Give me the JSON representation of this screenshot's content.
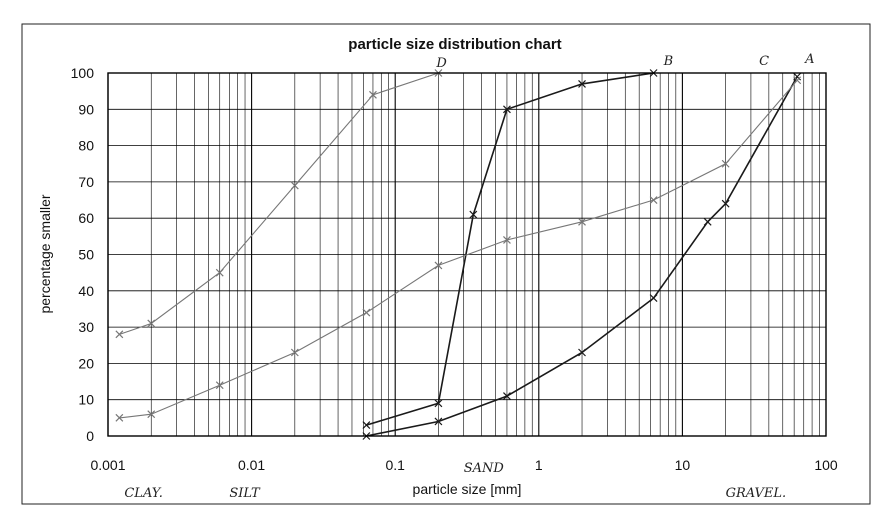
{
  "chart_data": {
    "type": "line",
    "title": "particle size distribution chart",
    "xlabel": "particle size [mm]",
    "ylabel": "percentage smaller",
    "xscale": "log",
    "xlim": [
      0.001,
      100
    ],
    "ylim": [
      0,
      100
    ],
    "xticks": [
      0.001,
      0.01,
      0.1,
      1,
      10,
      100
    ],
    "xtick_labels": [
      "0.001",
      "0.01",
      "0.1",
      "1",
      "10",
      "100"
    ],
    "yticks": [
      0,
      10,
      20,
      30,
      40,
      50,
      60,
      70,
      80,
      90,
      100
    ],
    "ytick_labels": [
      "0",
      "10",
      "20",
      "30",
      "40",
      "50",
      "60",
      "70",
      "80",
      "90",
      "100"
    ],
    "grid": true,
    "series": [
      {
        "name": "A",
        "color": "#1a1a1a",
        "x": [
          0.063,
          0.2,
          0.6,
          2,
          6.3,
          15,
          20,
          63
        ],
        "y": [
          0,
          4,
          11,
          23,
          38,
          59,
          64,
          99
        ]
      },
      {
        "name": "B",
        "color": "#1a1a1a",
        "x": [
          0.063,
          0.2,
          0.35,
          0.6,
          2,
          6.3
        ],
        "y": [
          3,
          9,
          61,
          90,
          97,
          100
        ]
      },
      {
        "name": "C",
        "color": "#777777",
        "x": [
          0.0012,
          0.002,
          0.006,
          0.02,
          0.063,
          0.2,
          0.6,
          2,
          6.3,
          20,
          63
        ],
        "y": [
          5,
          6,
          14,
          23,
          34,
          47,
          54,
          59,
          65,
          75,
          98
        ]
      },
      {
        "name": "D",
        "color": "#777777",
        "x": [
          0.0012,
          0.002,
          0.006,
          0.02,
          0.07,
          0.2
        ],
        "y": [
          28,
          31,
          45,
          69,
          94,
          100
        ]
      }
    ],
    "annotations": [
      {
        "text": "CLAY.",
        "x": 0.0013,
        "y": -14
      },
      {
        "text": "SILT",
        "x": 0.007,
        "y": -14
      },
      {
        "text": "SAND",
        "x": 0.3,
        "y": -8
      },
      {
        "text": "GRAVEL.",
        "x": 20,
        "y": -14
      }
    ]
  }
}
